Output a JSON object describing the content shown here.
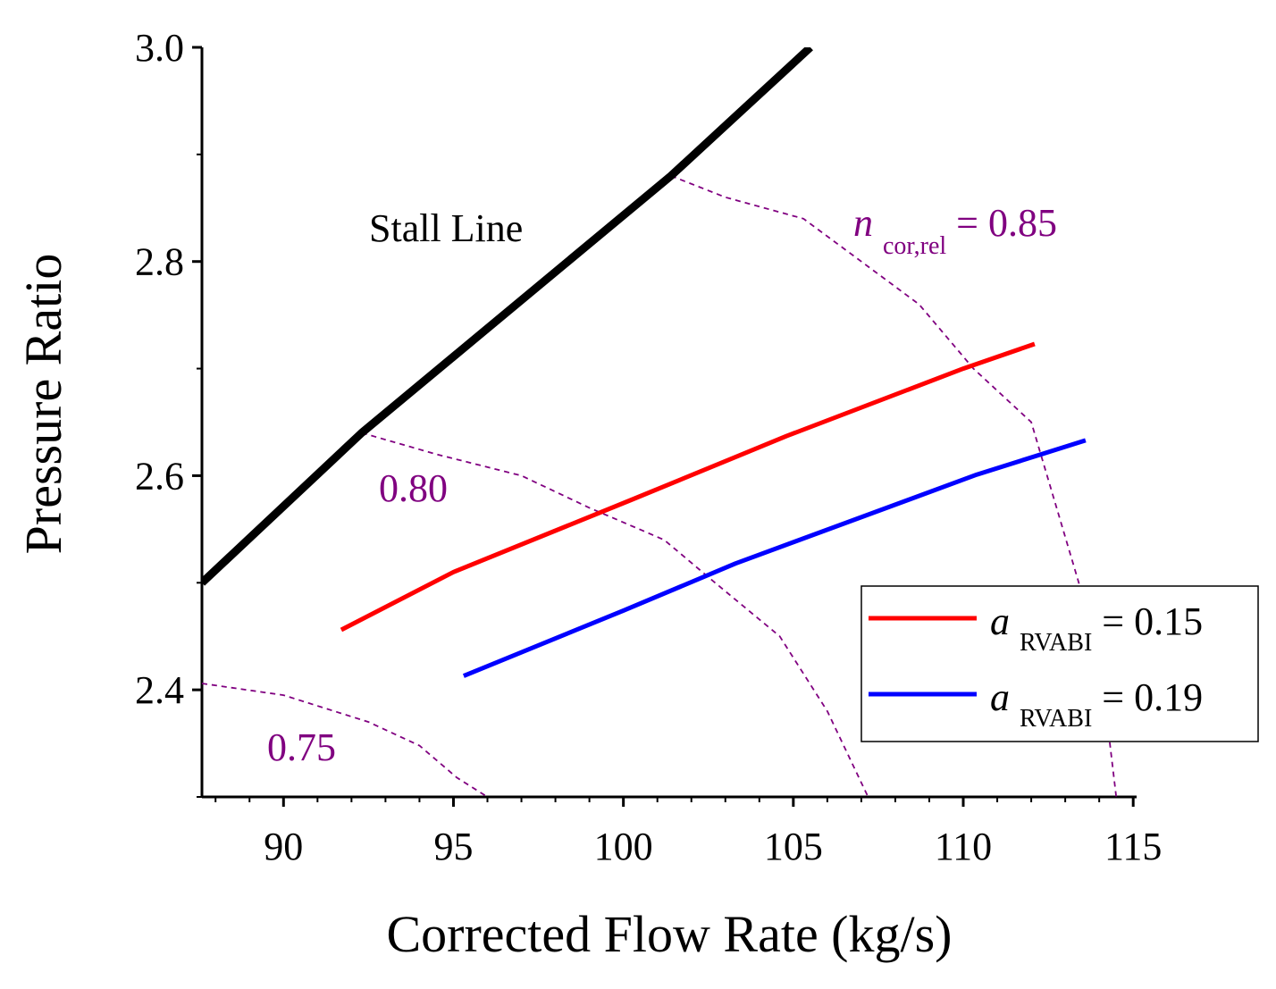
{
  "chart_data": {
    "type": "line",
    "xlabel": "Corrected Flow Rate (kg/s)",
    "ylabel": "Pressure Ratio",
    "xlim": [
      87.6,
      115.1
    ],
    "ylim": [
      2.3,
      3.0
    ],
    "x_ticks": [
      90,
      95,
      100,
      105,
      110,
      115
    ],
    "x_tick_labels": [
      "90",
      "95",
      "100",
      "105",
      "110",
      "115"
    ],
    "y_ticks": [
      2.4,
      2.6,
      2.8,
      3.0
    ],
    "y_tick_labels": [
      "2.4",
      "2.6",
      "2.8",
      "3.0"
    ],
    "stall_line": {
      "name": "Stall Line",
      "color": "#000000",
      "x": [
        87.6,
        92.3,
        101.4,
        105.5
      ],
      "y": [
        2.5,
        2.64,
        2.88,
        3.0
      ]
    },
    "series": [
      {
        "name": "a_RVABI = 0.15",
        "legend_main": "a",
        "legend_sub": "RVABI",
        "legend_rest": " = 0.15",
        "color": "#ff0000",
        "x": [
          91.7,
          95.0,
          100.2,
          104.8,
          110.0,
          112.1
        ],
        "y": [
          2.456,
          2.51,
          2.577,
          2.637,
          2.7,
          2.723
        ]
      },
      {
        "name": "a_RVABI = 0.19",
        "legend_main": "a",
        "legend_sub": "RVABI",
        "legend_rest": " = 0.19",
        "color": "#0000ff",
        "x": [
          95.3,
          100.0,
          103.3,
          110.4,
          113.6
        ],
        "y": [
          2.413,
          2.474,
          2.518,
          2.601,
          2.633
        ]
      }
    ],
    "speed_lines": [
      {
        "label": "0.75",
        "color": "#800080",
        "x": [
          87.6,
          90.0,
          92.5,
          94.0,
          95.1,
          96.0
        ],
        "y": [
          2.406,
          2.395,
          2.37,
          2.348,
          2.318,
          2.3
        ]
      },
      {
        "label": "0.80",
        "color": "#800080",
        "x": [
          92.3,
          94.5,
          97.0,
          99.0,
          101.2,
          102.7,
          104.6,
          106.0,
          107.2
        ],
        "y": [
          2.64,
          2.62,
          2.6,
          2.57,
          2.54,
          2.5,
          2.45,
          2.38,
          2.3
        ]
      },
      {
        "label_main": "n",
        "label_sub": "cor,rel",
        "label_rest": " = 0.85",
        "color": "#800080",
        "x": [
          101.4,
          103.0,
          105.3,
          107.0,
          108.7,
          110.3,
          112.0,
          113.4,
          114.2,
          114.5
        ],
        "y": [
          2.88,
          2.86,
          2.84,
          2.8,
          2.76,
          2.7,
          2.65,
          2.5,
          2.38,
          2.3
        ]
      }
    ],
    "annotations": {
      "stall_label": "Stall Line",
      "speed_075": "0.75",
      "speed_080": "0.80",
      "speed_085_main": "n",
      "speed_085_sub": "cor,rel",
      "speed_085_rest": " = 0.85"
    },
    "legend": {
      "position": "lower-right"
    }
  }
}
